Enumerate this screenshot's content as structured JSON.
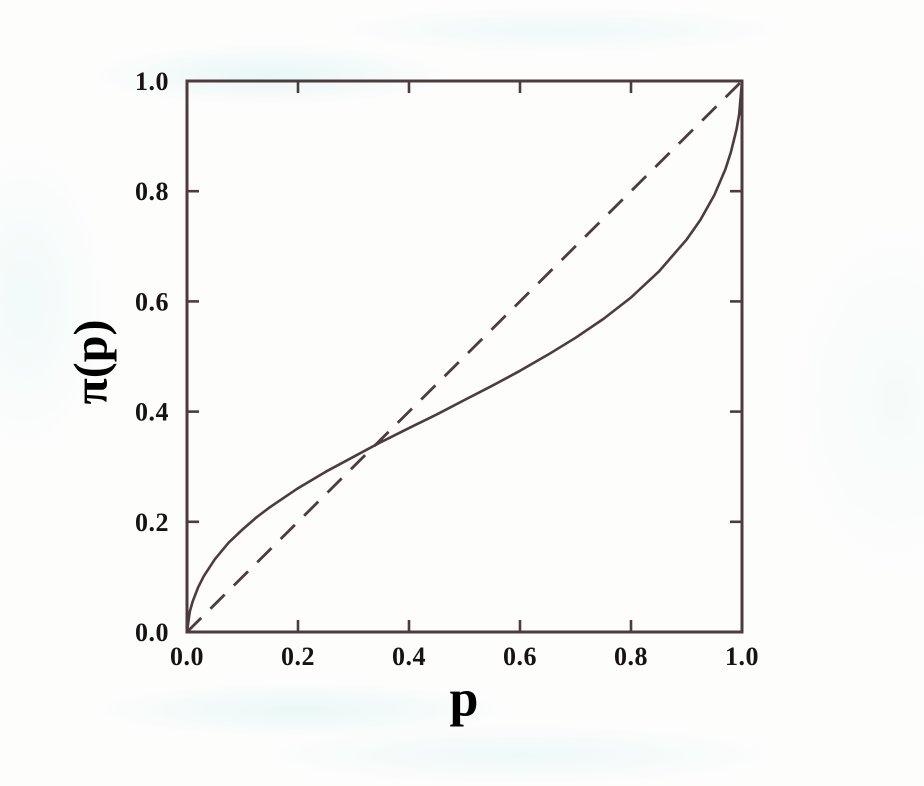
{
  "figure": {
    "kind": "scanned journal figure, no caption text visible",
    "background_color": "#fdfdfc",
    "line_color": "#4e3b3e",
    "text_color": "#171214"
  },
  "chart_data": {
    "type": "line",
    "title": "",
    "xlabel": "p",
    "ylabel": "π(p)",
    "xlim": [
      0,
      1
    ],
    "ylim": [
      0,
      1
    ],
    "xticks": [
      0,
      0.2,
      0.4,
      0.6,
      0.8,
      1
    ],
    "yticks": [
      0,
      0.2,
      0.4,
      0.6,
      0.8,
      1
    ],
    "xtick_labels": [
      "0.0",
      "0.2",
      "0.4",
      "0.6",
      "0.8",
      "1.0"
    ],
    "ytick_labels": [
      "0.0",
      "0.2",
      "0.4",
      "0.6",
      "0.8",
      "1.0"
    ],
    "grid": false,
    "legend_position": "none",
    "frame": "box with inward ticks on all four sides",
    "series": [
      {
        "name": "identity diagonal π(p) = p",
        "style": "dashed",
        "points": [
          [
            0,
            0
          ],
          [
            1,
            1
          ]
        ]
      },
      {
        "name": "probability weighting function π(p)",
        "style": "solid",
        "description": "Inverse-S weighting curve: overweights low probabilities, underweights moderate and high probabilities; crosses the diagonal near p ≈ 0.33; steep near p = 0 and p = 1",
        "points": [
          [
            0,
            0
          ],
          [
            0.005,
            0.037
          ],
          [
            0.01,
            0.055
          ],
          [
            0.02,
            0.081
          ],
          [
            0.03,
            0.101
          ],
          [
            0.05,
            0.132
          ],
          [
            0.075,
            0.162
          ],
          [
            0.1,
            0.186
          ],
          [
            0.125,
            0.208
          ],
          [
            0.15,
            0.227
          ],
          [
            0.2,
            0.261
          ],
          [
            0.25,
            0.291
          ],
          [
            0.3,
            0.318
          ],
          [
            0.35,
            0.345
          ],
          [
            0.4,
            0.37
          ],
          [
            0.45,
            0.395
          ],
          [
            0.5,
            0.421
          ],
          [
            0.55,
            0.447
          ],
          [
            0.6,
            0.474
          ],
          [
            0.65,
            0.503
          ],
          [
            0.7,
            0.534
          ],
          [
            0.75,
            0.568
          ],
          [
            0.8,
            0.607
          ],
          [
            0.85,
            0.654
          ],
          [
            0.9,
            0.712
          ],
          [
            0.925,
            0.748
          ],
          [
            0.95,
            0.793
          ],
          [
            0.97,
            0.84
          ],
          [
            0.98,
            0.871
          ],
          [
            0.99,
            0.912
          ],
          [
            0.995,
            0.94
          ],
          [
            1,
            1
          ]
        ]
      }
    ]
  }
}
